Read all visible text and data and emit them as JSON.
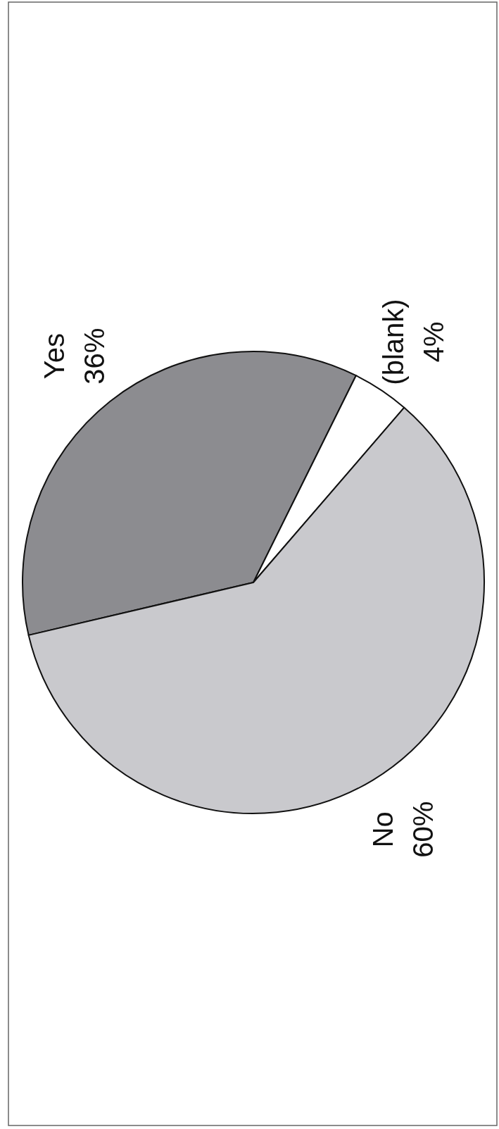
{
  "chart_data": {
    "type": "pie",
    "categories": [
      "Yes",
      "(blank)",
      "No"
    ],
    "values": [
      36,
      4,
      60
    ],
    "colors": [
      "#8c8c90",
      "#ffffff",
      "#c9c9cd"
    ],
    "value_labels": [
      "36%",
      "4%",
      "60%"
    ]
  }
}
